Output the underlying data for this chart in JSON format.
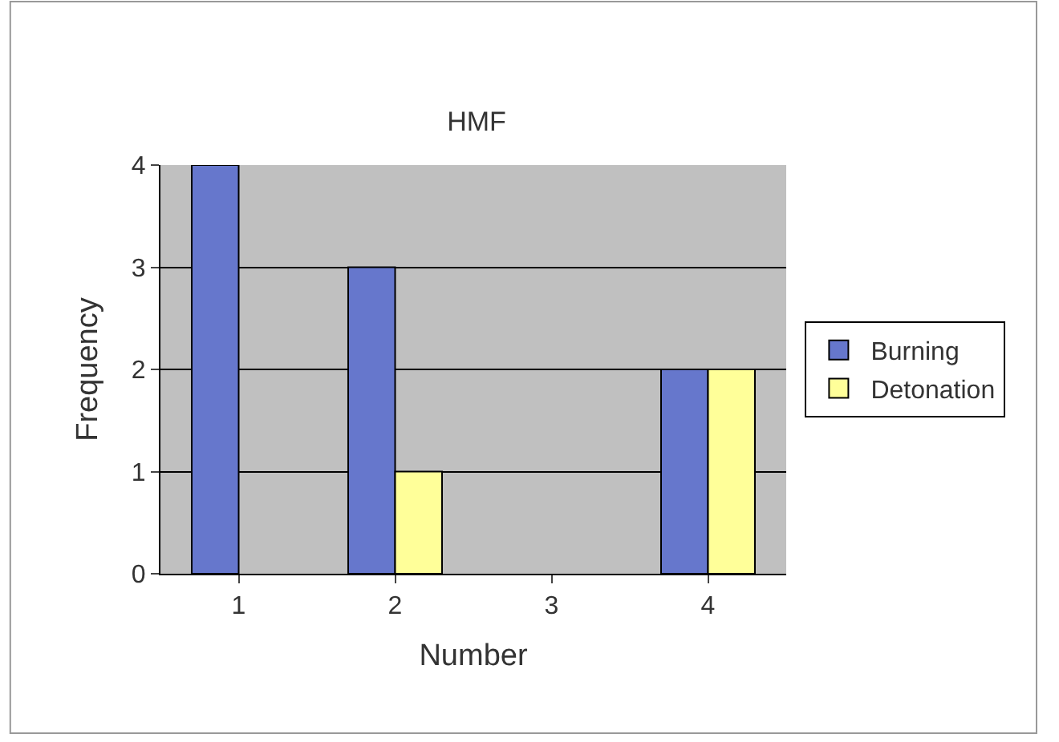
{
  "chart_data": {
    "type": "bar",
    "title": "HMF",
    "xlabel": "Number",
    "ylabel": "Frequency",
    "categories": [
      "1",
      "2",
      "3",
      "4"
    ],
    "series": [
      {
        "name": "Burning",
        "color": "#6677cc",
        "values": [
          4,
          3,
          null,
          2
        ]
      },
      {
        "name": "Detonation",
        "color": "#ffff99",
        "values": [
          null,
          1,
          null,
          2
        ]
      }
    ],
    "ylim": [
      0,
      4
    ],
    "yticks": [
      0,
      1,
      2,
      3,
      4
    ],
    "grid": "y",
    "legend": "right"
  }
}
